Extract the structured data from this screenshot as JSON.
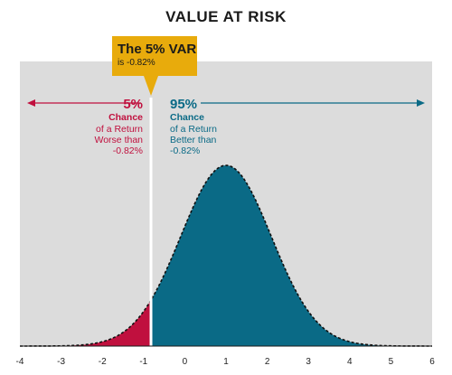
{
  "chart_data": {
    "type": "area",
    "title": "VALUE AT RISK",
    "x_ticks": [
      "-4",
      "-3",
      "-2",
      "-1",
      "0",
      "1",
      "2",
      "3",
      "4",
      "5",
      "6"
    ],
    "xlim": [
      -4,
      6
    ],
    "distribution": {
      "shape": "normal",
      "mean": 1.0,
      "std_dev": 1.1,
      "cutoff": -0.82
    },
    "series": [
      {
        "name": "",
        "range": [
          -4,
          -0.82
        ],
        "color": "#c0103e"
      },
      {
        "name": "",
        "range": [
          -0.82,
          6
        ],
        "color": "#0a6a86"
      }
    ],
    "callout": {
      "title": "The 5% VAR",
      "subtitle": "is -0.82%",
      "color": "#e8ab0c"
    },
    "left_annotation": {
      "percent": "5%",
      "line1": "Chance",
      "line2": "of a Return",
      "line3": "Worse than",
      "line4": "-0.82%",
      "color": "#c0103e"
    },
    "right_annotation": {
      "percent": "95%",
      "line1": "Chance",
      "line2": "of a Return",
      "line3": "Better than",
      "line4": "-0.82%",
      "color": "#0a6a86"
    },
    "background_color": "#dcdcdc",
    "grid": false
  }
}
